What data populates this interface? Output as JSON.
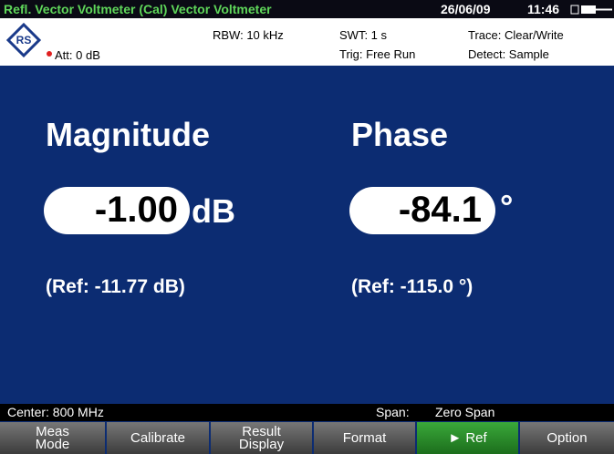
{
  "title_bar": {
    "title": "Refl. Vector Voltmeter (Cal) Vector Voltmeter",
    "date": "26/06/09",
    "time": "11:46"
  },
  "header": {
    "att": "Att: 0 dB",
    "rbw": "RBW:  10 kHz",
    "swt": "SWT:  1 s",
    "trig": "Trig:  Free Run",
    "trace": "Trace:  Clear/Write",
    "detect": "Detect:  Sample"
  },
  "magnitude": {
    "label": "Magnitude",
    "value": "-1.00",
    "unit": "dB",
    "ref": "(Ref: -11.77 dB)"
  },
  "phase": {
    "label": "Phase",
    "value": "-84.1",
    "unit": "°",
    "ref": "(Ref: -115.0 °)"
  },
  "status_bar": {
    "center": "Center: 800 MHz",
    "span_label": "Span:",
    "span_value": "Zero Span"
  },
  "softkeys": [
    [
      "Meas",
      "Mode"
    ],
    [
      "Calibrate"
    ],
    [
      "Result",
      "Display"
    ],
    [
      "Format"
    ],
    [
      "► Ref"
    ],
    [
      "Option"
    ]
  ]
}
